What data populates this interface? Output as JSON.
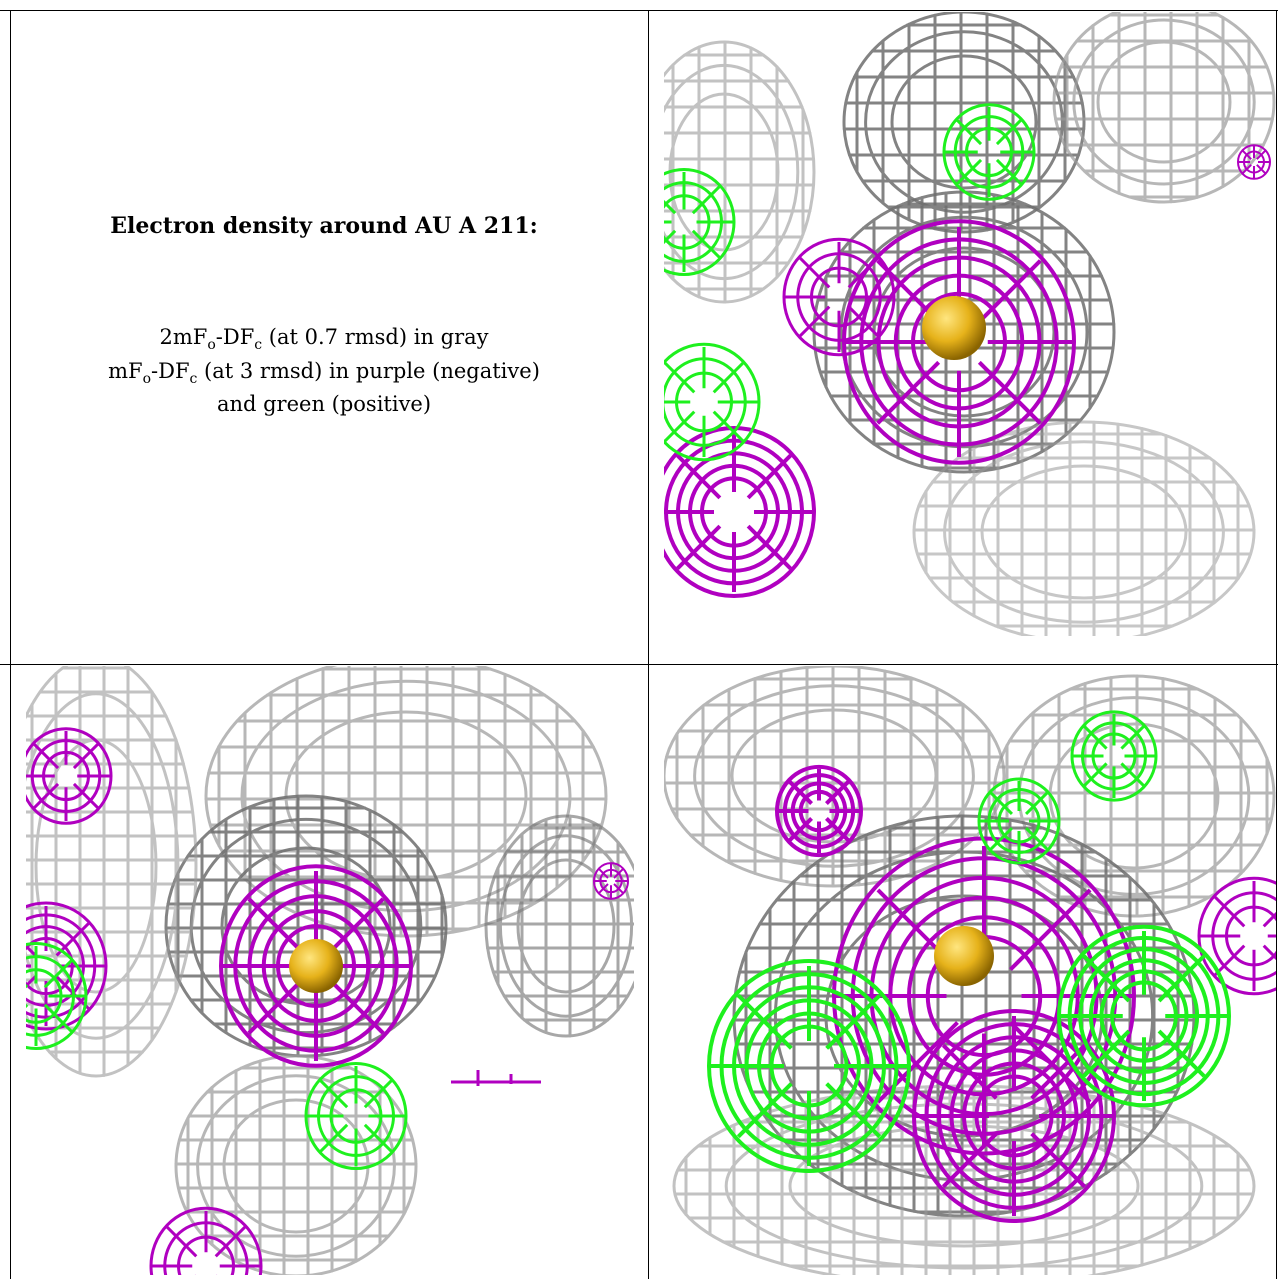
{
  "caption": {
    "title": "Electron density around AU A 211:",
    "line1_pre": "2mF",
    "line1_sub1": "o",
    "line1_mid": "-DF",
    "line1_sub2": "c",
    "line1_post": " (at 0.7 rmsd) in gray",
    "line2_pre": "mF",
    "line2_sub1": "o",
    "line2_mid": "-DF",
    "line2_sub2": "c",
    "line2_post": " (at 3 rmsd) in purple (negative)",
    "line3": "and green (positive)"
  },
  "panels": [
    {
      "name": "top-right-view",
      "focus": "atom-center"
    },
    {
      "name": "bottom-left-view",
      "focus": "atom-center"
    },
    {
      "name": "bottom-right-view",
      "focus": "atom-center"
    }
  ],
  "colors": {
    "gray_map": "#9a9a9a",
    "gray_dark": "#6e6e6e",
    "negative": "#b000c0",
    "positive": "#1ef01e",
    "atom": "#e6b21a",
    "border": "#000000"
  }
}
